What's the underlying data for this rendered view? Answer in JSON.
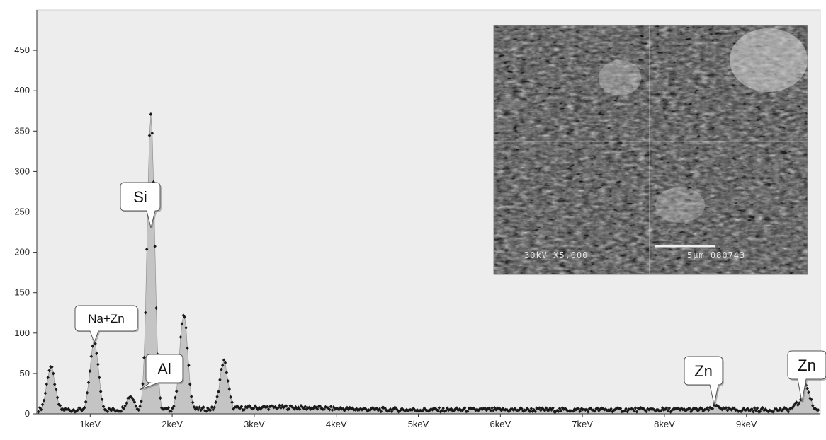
{
  "chart_data": {
    "type": "area",
    "title": "",
    "xlabel": "",
    "ylabel": "",
    "xlim": [
      0.35,
      9.9
    ],
    "ylim": [
      0,
      500
    ],
    "y_ticks": [
      0,
      50,
      100,
      150,
      200,
      250,
      300,
      350,
      400,
      450
    ],
    "x_ticks": [
      {
        "value": 1,
        "label": "1keV"
      },
      {
        "value": 2,
        "label": "2keV"
      },
      {
        "value": 3,
        "label": "3keV"
      },
      {
        "value": 4,
        "label": "4keV"
      },
      {
        "value": 5,
        "label": "5keV"
      },
      {
        "value": 6,
        "label": "6keV"
      },
      {
        "value": 7,
        "label": "7keV"
      },
      {
        "value": 8,
        "label": "8keV"
      },
      {
        "value": 9,
        "label": "9keV"
      }
    ],
    "grid": false,
    "background": "#ededed",
    "fill_color": "#c4c4c4",
    "line_color": "#1a1a1a",
    "peaks": [
      {
        "x": 0.52,
        "y": 58
      },
      {
        "x": 1.05,
        "y": 90
      },
      {
        "x": 1.49,
        "y": 22
      },
      {
        "x": 1.74,
        "y": 372
      },
      {
        "x": 2.14,
        "y": 122
      },
      {
        "x": 2.63,
        "y": 65
      },
      {
        "x": 8.64,
        "y": 10
      },
      {
        "x": 9.62,
        "y": 12
      },
      {
        "x": 9.72,
        "y": 36
      }
    ],
    "annotations": [
      {
        "label": "Si",
        "x": 1.74,
        "y": 230
      },
      {
        "label": "Na+Zn",
        "x": 1.05,
        "y": 100
      },
      {
        "label": "Al",
        "x": 1.55,
        "y": 25
      },
      {
        "label": "Zn",
        "x": 8.64,
        "y": 10
      },
      {
        "label": "Zn",
        "x": 9.62,
        "y": 12
      }
    ],
    "inset_caption": {
      "left": "30kV  X5,000",
      "right": "5μm  080743"
    }
  }
}
